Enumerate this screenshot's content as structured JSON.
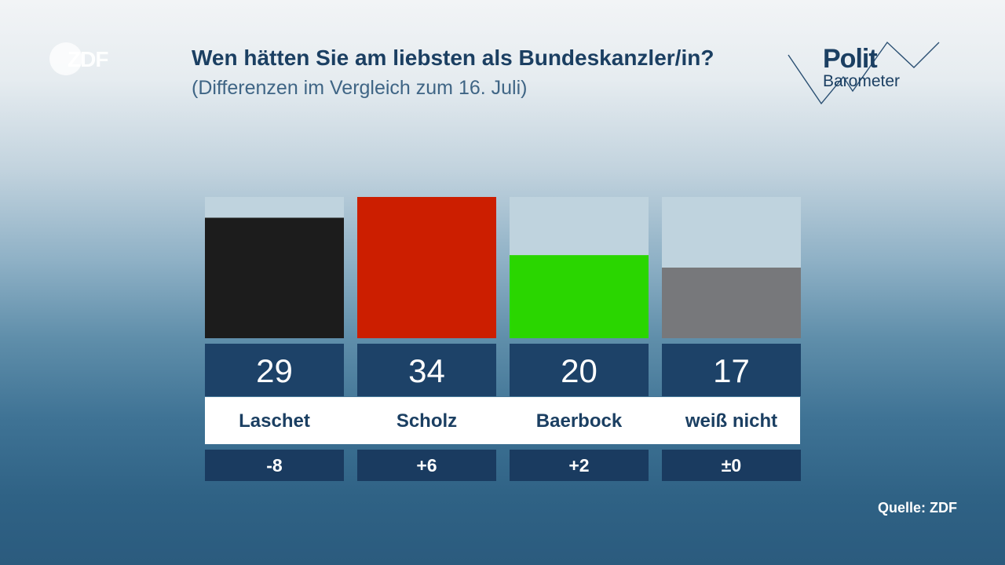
{
  "branding": {
    "zdf_logo_text": "ZDF",
    "politbarometer_word1": "Polit",
    "politbarometer_word2": "Barometer"
  },
  "chart_data": {
    "type": "bar",
    "title": "Wen hätten Sie am liebsten als Bundeskanzler/in?",
    "subtitle": "(Differenzen im Vergleich zum 16. Juli)",
    "categories": [
      "Laschet",
      "Scholz",
      "Baerbock",
      "weiß nicht"
    ],
    "values": [
      29,
      34,
      20,
      17
    ],
    "value_labels": [
      "29",
      "34",
      "20",
      "17"
    ],
    "differences": [
      "-8",
      "+6",
      "+2",
      "±0"
    ],
    "colors": [
      "#1c1c1c",
      "#cc1e00",
      "#2ad600",
      "#77787b"
    ],
    "ylim": [
      0,
      34
    ],
    "unit": "%",
    "xlabel": "",
    "ylabel": ""
  },
  "footer": {
    "source": "Quelle: ZDF"
  }
}
